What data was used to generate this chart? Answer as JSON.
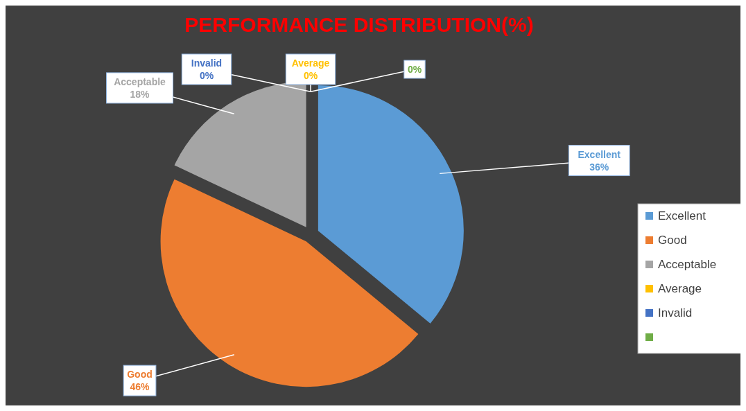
{
  "chart_data": {
    "type": "pie",
    "title": "PERFORMANCE DISTRIBUTION(%)",
    "categories": [
      "Excellent",
      "Good",
      "Acceptable",
      "Average",
      "Invalid",
      null
    ],
    "values": [
      36,
      46,
      18,
      0,
      0,
      0
    ],
    "value_labels": [
      "36%",
      "46%",
      "18%",
      "0%",
      "0%",
      "0%"
    ],
    "colors": [
      "#5b9bd5",
      "#ed7d31",
      "#a5a5a5",
      "#ffc000",
      "#4472c4",
      "#70ad47"
    ],
    "legend": "right"
  }
}
